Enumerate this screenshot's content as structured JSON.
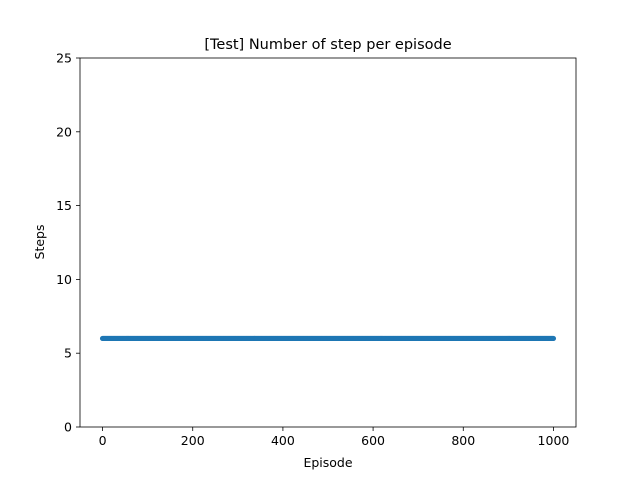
{
  "chart_data": {
    "type": "scatter",
    "title": "[Test] Number of step per episode",
    "xlabel": "Episode",
    "ylabel": "Steps",
    "xlim": [
      -50,
      1050
    ],
    "ylim": [
      0,
      25
    ],
    "xticks": [
      0,
      200,
      400,
      600,
      800,
      1000
    ],
    "yticks": [
      0,
      5,
      10,
      15,
      20,
      25
    ],
    "grid": false,
    "marker_color": "#1f77b4",
    "series": [
      {
        "x_start": 0,
        "x_end": 1000,
        "x_step": 1,
        "y": 6
      }
    ]
  }
}
